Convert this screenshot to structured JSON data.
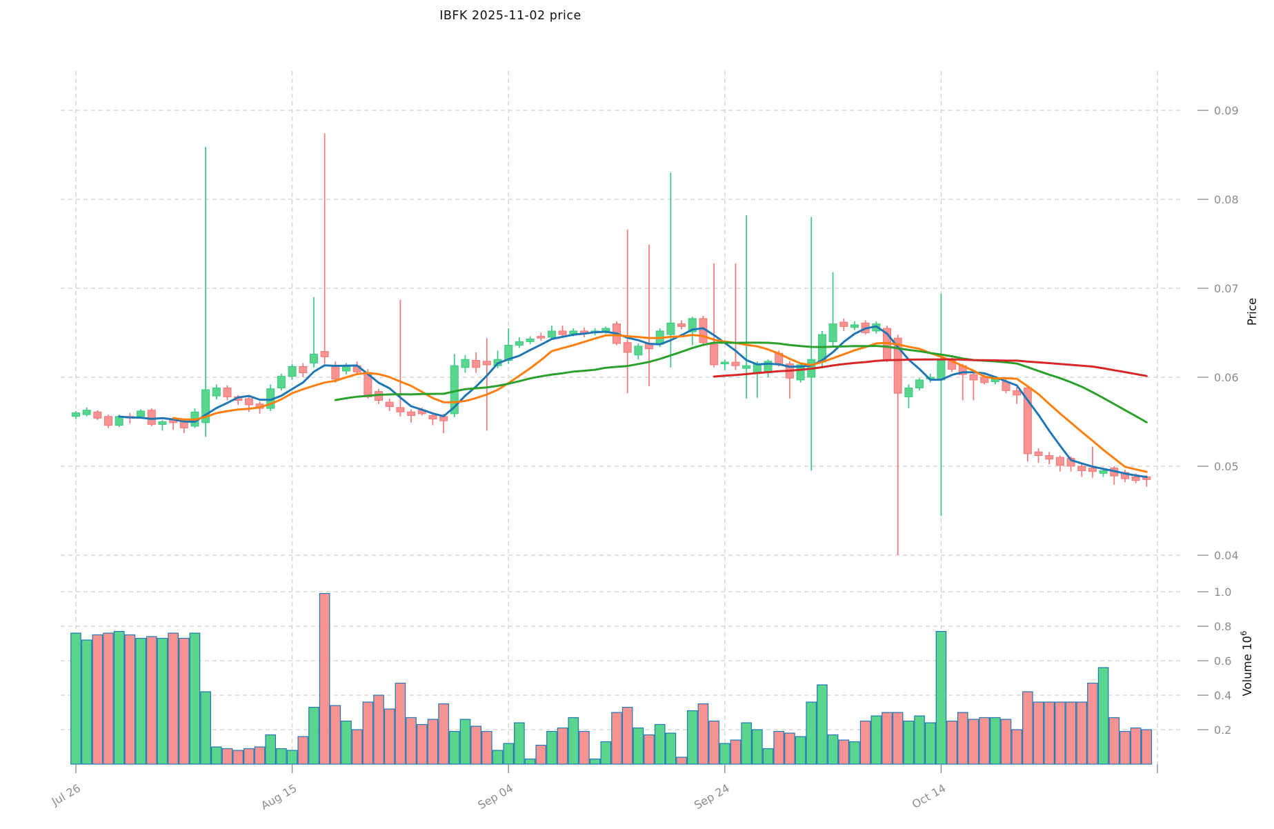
{
  "title": "IBFK  2025-11-02  price",
  "chart_data": {
    "type": "candlestick",
    "subtype": "ohlc-with-volume-panel",
    "symbol": "IBFK",
    "as_of_date": "2025-11-02",
    "frequency": "daily",
    "bar_count": 100,
    "start_date": "2025-07-26",
    "end_date": "2025-11-02",
    "grid": true,
    "legend_position": "none",
    "x_axis": {
      "ticks": [
        {
          "index": 0,
          "label": "Jul 26"
        },
        {
          "index": 20,
          "label": "Aug 15"
        },
        {
          "index": 40,
          "label": "Sep 04"
        },
        {
          "index": 60,
          "label": "Sep 24"
        },
        {
          "index": 80,
          "label": "Oct 14"
        },
        {
          "index": 100,
          "label": ""
        }
      ]
    },
    "price_axis": {
      "label": "Price",
      "side": "right",
      "tick_labels": [
        "0.09",
        "0.08",
        "0.07",
        "0.06",
        "0.05",
        "0.04"
      ],
      "tick_values": [
        0.09,
        0.08,
        0.07,
        0.06,
        0.05,
        0.04
      ],
      "range": [
        0.0385,
        0.0945
      ]
    },
    "volume_axis": {
      "label": "Volume",
      "unit_base": "10",
      "unit_exponent": "6",
      "side": "right",
      "tick_labels": [
        "1.0",
        "0.8",
        "0.6",
        "0.4",
        "0.2"
      ],
      "tick_values": [
        1.0,
        0.8,
        0.6,
        0.4,
        0.2
      ],
      "range": [
        0,
        1.1
      ]
    },
    "moving_averages": [
      {
        "window": 5,
        "color": "#1f77b4"
      },
      {
        "window": 10,
        "color": "#ff7f0e"
      },
      {
        "window": 25,
        "color": "#2ca02c"
      },
      {
        "window": 60,
        "color": "#d62728"
      }
    ],
    "colors": {
      "up_body": "#5ad58d",
      "up_edge": "#35ca80",
      "down_body": "#f89393",
      "down_edge": "#f57676",
      "volume_edge": "#1f77b4",
      "gridline": "#cfcfcf",
      "tick_text": "#8c8c8c",
      "label_text": "#111111",
      "background": "#ffffff"
    },
    "ohlc": [
      [
        0.0556,
        0.0562,
        0.0553,
        0.056
      ],
      [
        0.0558,
        0.0566,
        0.0556,
        0.0563
      ],
      [
        0.0561,
        0.0563,
        0.0552,
        0.0554
      ],
      [
        0.0556,
        0.0558,
        0.0543,
        0.0546
      ],
      [
        0.0546,
        0.0558,
        0.0544,
        0.0556
      ],
      [
        0.0556,
        0.056,
        0.0548,
        0.0555
      ],
      [
        0.0556,
        0.0564,
        0.0554,
        0.0562
      ],
      [
        0.0563,
        0.0565,
        0.0545,
        0.0547
      ],
      [
        0.0547,
        0.0552,
        0.054,
        0.055
      ],
      [
        0.0553,
        0.0555,
        0.0541,
        0.0549
      ],
      [
        0.0551,
        0.0554,
        0.0537,
        0.0543
      ],
      [
        0.0545,
        0.0565,
        0.0543,
        0.0561
      ],
      [
        0.0549,
        0.0859,
        0.0533,
        0.0586
      ],
      [
        0.0579,
        0.0592,
        0.0575,
        0.0588
      ],
      [
        0.0588,
        0.0591,
        0.0574,
        0.0578
      ],
      [
        0.0578,
        0.058,
        0.0569,
        0.0574
      ],
      [
        0.0576,
        0.0578,
        0.0561,
        0.0569
      ],
      [
        0.057,
        0.0573,
        0.0559,
        0.0565
      ],
      [
        0.0565,
        0.0592,
        0.0562,
        0.0587
      ],
      [
        0.0588,
        0.0604,
        0.0585,
        0.0601
      ],
      [
        0.0601,
        0.0615,
        0.0597,
        0.0612
      ],
      [
        0.0612,
        0.0616,
        0.06,
        0.0605
      ],
      [
        0.0616,
        0.069,
        0.0611,
        0.0626
      ],
      [
        0.0629,
        0.0874,
        0.0615,
        0.0623
      ],
      [
        0.0612,
        0.0618,
        0.0594,
        0.0598
      ],
      [
        0.0607,
        0.0616,
        0.0603,
        0.0613
      ],
      [
        0.0613,
        0.0618,
        0.0603,
        0.0606
      ],
      [
        0.0605,
        0.0609,
        0.0576,
        0.0578
      ],
      [
        0.0584,
        0.0587,
        0.057,
        0.0574
      ],
      [
        0.0572,
        0.0576,
        0.0562,
        0.0567
      ],
      [
        0.0566,
        0.0687,
        0.0556,
        0.0561
      ],
      [
        0.0561,
        0.0564,
        0.0549,
        0.0557
      ],
      [
        0.0563,
        0.0566,
        0.0557,
        0.0559
      ],
      [
        0.0557,
        0.056,
        0.0546,
        0.0553
      ],
      [
        0.0556,
        0.0559,
        0.0537,
        0.0551
      ],
      [
        0.0559,
        0.0626,
        0.0555,
        0.0613
      ],
      [
        0.0611,
        0.0625,
        0.0605,
        0.062
      ],
      [
        0.0619,
        0.0628,
        0.0605,
        0.0611
      ],
      [
        0.0618,
        0.0644,
        0.054,
        0.0614
      ],
      [
        0.0613,
        0.063,
        0.061,
        0.062
      ],
      [
        0.0619,
        0.0655,
        0.0615,
        0.0636
      ],
      [
        0.0636,
        0.0645,
        0.0633,
        0.064
      ],
      [
        0.064,
        0.0646,
        0.0637,
        0.0643
      ],
      [
        0.0646,
        0.065,
        0.0641,
        0.0644
      ],
      [
        0.0645,
        0.0658,
        0.0643,
        0.0652
      ],
      [
        0.0652,
        0.0658,
        0.0644,
        0.0648
      ],
      [
        0.0649,
        0.0655,
        0.0646,
        0.0652
      ],
      [
        0.0652,
        0.0656,
        0.0645,
        0.0649
      ],
      [
        0.065,
        0.0655,
        0.0647,
        0.0652
      ],
      [
        0.0652,
        0.0657,
        0.0649,
        0.0655
      ],
      [
        0.066,
        0.0663,
        0.0636,
        0.0638
      ],
      [
        0.0639,
        0.0766,
        0.0582,
        0.0628
      ],
      [
        0.0625,
        0.0638,
        0.062,
        0.0635
      ],
      [
        0.0638,
        0.0749,
        0.059,
        0.0632
      ],
      [
        0.0637,
        0.0655,
        0.0634,
        0.0652
      ],
      [
        0.0648,
        0.083,
        0.0611,
        0.0661
      ],
      [
        0.066,
        0.0664,
        0.0654,
        0.0657
      ],
      [
        0.0651,
        0.0668,
        0.0636,
        0.0666
      ],
      [
        0.0666,
        0.0669,
        0.0637,
        0.0639
      ],
      [
        0.0637,
        0.0728,
        0.0611,
        0.0614
      ],
      [
        0.0615,
        0.062,
        0.0608,
        0.0617
      ],
      [
        0.0617,
        0.0728,
        0.0608,
        0.0613
      ],
      [
        0.061,
        0.0782,
        0.0576,
        0.0613
      ],
      [
        0.0605,
        0.0618,
        0.0577,
        0.0615
      ],
      [
        0.0605,
        0.062,
        0.06,
        0.0618
      ],
      [
        0.0627,
        0.063,
        0.0612,
        0.0614
      ],
      [
        0.0615,
        0.0618,
        0.0576,
        0.0599
      ],
      [
        0.0597,
        0.0616,
        0.0594,
        0.0614
      ],
      [
        0.06,
        0.078,
        0.0495,
        0.062
      ],
      [
        0.0617,
        0.0652,
        0.061,
        0.0648
      ],
      [
        0.064,
        0.0718,
        0.0635,
        0.066
      ],
      [
        0.0662,
        0.0666,
        0.0652,
        0.0657
      ],
      [
        0.0656,
        0.0663,
        0.0653,
        0.0659
      ],
      [
        0.0661,
        0.0664,
        0.0648,
        0.065
      ],
      [
        0.0652,
        0.0663,
        0.0649,
        0.066
      ],
      [
        0.0655,
        0.0658,
        0.0617,
        0.0619
      ],
      [
        0.0644,
        0.0648,
        0.04,
        0.0582
      ],
      [
        0.0578,
        0.0592,
        0.0565,
        0.0588
      ],
      [
        0.0588,
        0.0599,
        0.0585,
        0.0597
      ],
      [
        0.0598,
        0.0604,
        0.0594,
        0.06
      ],
      [
        0.0597,
        0.0694,
        0.0444,
        0.0619
      ],
      [
        0.0619,
        0.0622,
        0.0606,
        0.0609
      ],
      [
        0.0613,
        0.0615,
        0.0574,
        0.0603
      ],
      [
        0.0603,
        0.0606,
        0.0574,
        0.0597
      ],
      [
        0.06,
        0.0603,
        0.0592,
        0.0594
      ],
      [
        0.0595,
        0.06,
        0.0592,
        0.0598
      ],
      [
        0.0595,
        0.0598,
        0.0582,
        0.0585
      ],
      [
        0.0585,
        0.0589,
        0.057,
        0.058
      ],
      [
        0.0588,
        0.059,
        0.0505,
        0.0514
      ],
      [
        0.0516,
        0.052,
        0.0504,
        0.0512
      ],
      [
        0.0512,
        0.0516,
        0.0502,
        0.0508
      ],
      [
        0.051,
        0.0512,
        0.0494,
        0.0501
      ],
      [
        0.0509,
        0.0511,
        0.0494,
        0.05
      ],
      [
        0.05,
        0.0504,
        0.0488,
        0.0495
      ],
      [
        0.0498,
        0.0522,
        0.0487,
        0.0494
      ],
      [
        0.0492,
        0.0497,
        0.0488,
        0.0495
      ],
      [
        0.0498,
        0.05,
        0.0479,
        0.0489
      ],
      [
        0.0493,
        0.0496,
        0.0482,
        0.0486
      ],
      [
        0.0488,
        0.0492,
        0.0481,
        0.0484
      ],
      [
        0.0488,
        0.049,
        0.0477,
        0.0485
      ]
    ],
    "volume_millions": [
      0.76,
      0.72,
      0.75,
      0.76,
      0.77,
      0.75,
      0.73,
      0.74,
      0.73,
      0.76,
      0.73,
      0.76,
      0.42,
      0.1,
      0.09,
      0.08,
      0.09,
      0.1,
      0.17,
      0.09,
      0.08,
      0.16,
      0.33,
      0.99,
      0.34,
      0.25,
      0.2,
      0.36,
      0.4,
      0.32,
      0.47,
      0.27,
      0.23,
      0.26,
      0.35,
      0.19,
      0.26,
      0.22,
      0.19,
      0.08,
      0.12,
      0.24,
      0.03,
      0.11,
      0.19,
      0.21,
      0.27,
      0.19,
      0.03,
      0.13,
      0.3,
      0.33,
      0.21,
      0.17,
      0.23,
      0.18,
      0.04,
      0.31,
      0.35,
      0.25,
      0.12,
      0.14,
      0.24,
      0.2,
      0.09,
      0.19,
      0.18,
      0.16,
      0.36,
      0.46,
      0.17,
      0.14,
      0.13,
      0.25,
      0.28,
      0.3,
      0.3,
      0.25,
      0.28,
      0.24,
      0.77,
      0.25,
      0.3,
      0.26,
      0.27,
      0.27,
      0.26,
      0.2,
      0.42,
      0.36,
      0.36,
      0.36,
      0.36,
      0.36,
      0.47,
      0.56,
      0.27,
      0.19,
      0.21,
      0.2
    ]
  }
}
